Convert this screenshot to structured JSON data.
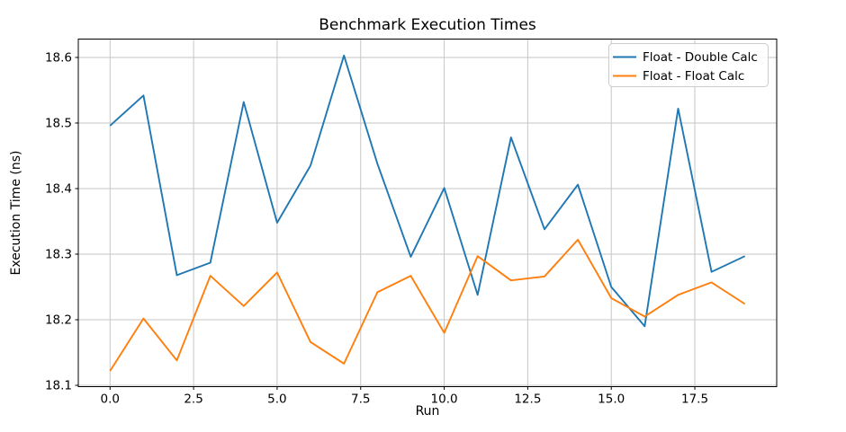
{
  "figure": {
    "title": "Benchmark Execution Times",
    "xlabel": "Run",
    "ylabel": "Execution Time (ns)"
  },
  "chart_data": {
    "type": "line",
    "title": "Benchmark Execution Times",
    "xlabel": "Run",
    "ylabel": "Execution Time (ns)",
    "x": [
      0,
      1,
      2,
      3,
      4,
      5,
      6,
      7,
      8,
      9,
      10,
      11,
      12,
      13,
      14,
      15,
      16,
      17,
      18,
      19
    ],
    "series": [
      {
        "name": "Float - Double Calc",
        "color": "#1f77b4",
        "values": [
          18.496,
          18.542,
          18.268,
          18.287,
          18.532,
          18.348,
          18.435,
          18.603,
          18.438,
          18.296,
          18.401,
          18.238,
          18.478,
          18.338,
          18.406,
          18.25,
          18.19,
          18.522,
          18.273,
          18.297
        ]
      },
      {
        "name": "Float - Float Calc",
        "color": "#ff7f0e",
        "values": [
          18.122,
          18.202,
          18.138,
          18.267,
          18.221,
          18.272,
          18.166,
          18.133,
          18.242,
          18.267,
          18.18,
          18.297,
          18.26,
          18.266,
          18.322,
          18.233,
          18.205,
          18.238,
          18.257,
          18.224
        ]
      }
    ],
    "xlim": [
      -0.95,
      19.95
    ],
    "ylim": [
      18.098,
      18.628
    ],
    "xticks": [
      0.0,
      2.5,
      5.0,
      7.5,
      10.0,
      12.5,
      15.0,
      17.5
    ],
    "xtick_labels": [
      "0.0",
      "2.5",
      "5.0",
      "7.5",
      "10.0",
      "12.5",
      "15.0",
      "17.5"
    ],
    "yticks": [
      18.1,
      18.2,
      18.3,
      18.4,
      18.5,
      18.6
    ],
    "ytick_labels": [
      "18.1",
      "18.2",
      "18.3",
      "18.4",
      "18.5",
      "18.6"
    ],
    "grid": true,
    "legend_position": "upper right",
    "legend_labels": [
      "Float - Double Calc",
      "Float - Float Calc"
    ]
  },
  "colors": {
    "series_blue": "#1f77b4",
    "series_orange": "#ff7f0e",
    "grid": "#c6c6c6",
    "spine": "#000000",
    "legend_border": "#cccccc",
    "text": "#000000"
  }
}
